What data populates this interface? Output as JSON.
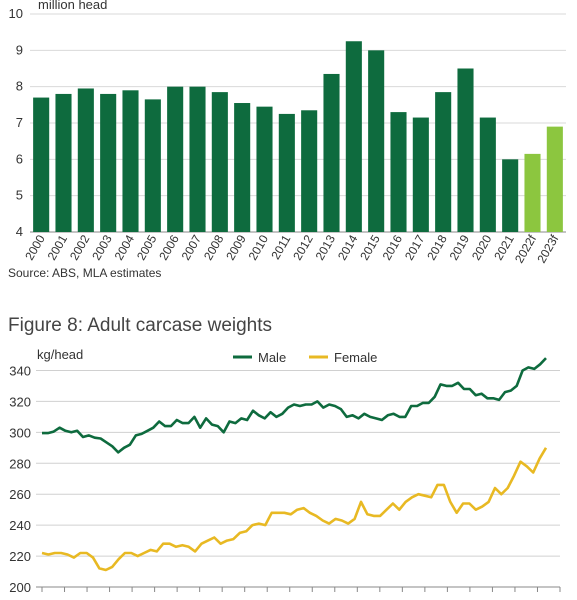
{
  "chart_data": [
    {
      "type": "bar",
      "ylabel": "million head",
      "ylim": [
        4,
        10
      ],
      "yticks": [
        4,
        5,
        6,
        7,
        8,
        9,
        10
      ],
      "categories": [
        "2000",
        "2001",
        "2002",
        "2003",
        "2004",
        "2005",
        "2006",
        "2007",
        "2008",
        "2009",
        "2010",
        "2011",
        "2012",
        "2013",
        "2014",
        "2015",
        "2016",
        "2017",
        "2018",
        "2019",
        "2020",
        "2021",
        "2022f",
        "2023f"
      ],
      "values": [
        7.7,
        7.8,
        7.95,
        7.8,
        7.9,
        7.65,
        8.0,
        8.0,
        7.85,
        7.55,
        7.45,
        7.25,
        7.35,
        8.35,
        9.25,
        9.0,
        7.3,
        7.15,
        7.85,
        8.5,
        7.15,
        6.0,
        6.15,
        6.9
      ],
      "colors": {
        "actual": "#0e6b3e",
        "forecast": "#8cc63f"
      },
      "forecast_from_index": 22,
      "grid": true
    },
    {
      "type": "line",
      "title": "Figure 8: Adult carcase weights",
      "ylabel": "kg/head",
      "ylim": [
        200,
        350
      ],
      "yticks": [
        200,
        220,
        240,
        260,
        280,
        300,
        320,
        340
      ],
      "legend_position": "top",
      "series": [
        {
          "name": "Male",
          "color": "#0e6b3e",
          "values": [
            299.5,
            299.5,
            300.5,
            303,
            301,
            300,
            301,
            297,
            298,
            296.5,
            296,
            293.5,
            291,
            287,
            290,
            292,
            298,
            299,
            301,
            303,
            307,
            304,
            304,
            308,
            306,
            306,
            310,
            303,
            309,
            305,
            304,
            300,
            307,
            306,
            309,
            308,
            314,
            311,
            309,
            313,
            310,
            312,
            316,
            318,
            317,
            318,
            318,
            320,
            316,
            318,
            317,
            315,
            310,
            311,
            309,
            312,
            310,
            309,
            308,
            311,
            312,
            310,
            310,
            317,
            317,
            319,
            319,
            323,
            331,
            330,
            330,
            332,
            328,
            328,
            324,
            325,
            322,
            322,
            321,
            326,
            327,
            330,
            340,
            342,
            341,
            344,
            348
          ]
        },
        {
          "name": "Female",
          "color": "#e8b923",
          "values": [
            222,
            221,
            222,
            222,
            221,
            219,
            222,
            222,
            219,
            212,
            211,
            213,
            218,
            222,
            222,
            220,
            222,
            224,
            223,
            228,
            228,
            226,
            227,
            226,
            223,
            228,
            230,
            232,
            228,
            230,
            231,
            235,
            236,
            240,
            241,
            240,
            248,
            248,
            248,
            247,
            250,
            251,
            248,
            246,
            243,
            241,
            244,
            243,
            241,
            244,
            255,
            247,
            246,
            246,
            250,
            254,
            250,
            255,
            258,
            260,
            259,
            258,
            266,
            266,
            255,
            248,
            254,
            254,
            250,
            252,
            255,
            264,
            260,
            264,
            272,
            281,
            278,
            274,
            283,
            290
          ]
        }
      ],
      "grid": true
    }
  ],
  "source": "Source: ABS, MLA estimates",
  "figure8_title": "Figure 8: Adult carcase weights"
}
